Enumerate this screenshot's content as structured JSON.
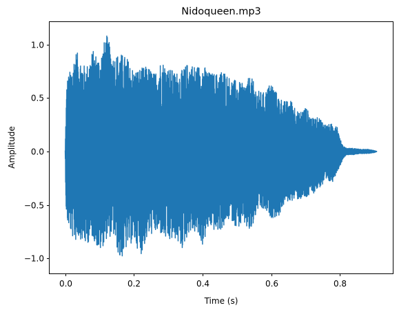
{
  "chart_data": {
    "type": "line",
    "title": "Nidoqueen.mp3",
    "xlabel": "Time (s)",
    "ylabel": "Amplitude",
    "xlim": [
      -0.0454,
      0.954
    ],
    "ylim": [
      -1.14,
      1.21
    ],
    "xticks": [
      0.0,
      0.2,
      0.4,
      0.6,
      0.8
    ],
    "xtick_labels": [
      "0.0",
      "0.2",
      "0.4",
      "0.6",
      "0.8"
    ],
    "yticks": [
      -1.0,
      -0.5,
      0.0,
      0.5,
      1.0
    ],
    "ytick_labels": [
      "−1.0",
      "−0.5",
      "0.0",
      "0.5",
      "1.0"
    ],
    "grid": false,
    "duration_s": 0.908,
    "envelope": {
      "t": [
        0.0,
        0.002,
        0.005,
        0.01,
        0.02,
        0.03,
        0.04,
        0.06,
        0.08,
        0.1,
        0.12,
        0.14,
        0.16,
        0.18,
        0.2,
        0.22,
        0.24,
        0.26,
        0.28,
        0.3,
        0.32,
        0.34,
        0.36,
        0.38,
        0.4,
        0.42,
        0.44,
        0.46,
        0.48,
        0.5,
        0.52,
        0.54,
        0.56,
        0.58,
        0.6,
        0.62,
        0.64,
        0.66,
        0.68,
        0.7,
        0.72,
        0.74,
        0.76,
        0.78,
        0.79,
        0.8,
        0.81,
        0.82,
        0.84,
        0.86,
        0.88,
        0.9,
        0.908
      ],
      "max": [
        0.01,
        0.35,
        0.68,
        0.72,
        0.8,
        0.95,
        0.9,
        0.78,
        0.95,
        0.88,
        1.1,
        0.9,
        0.92,
        0.88,
        0.76,
        0.78,
        0.8,
        0.73,
        0.86,
        0.79,
        0.74,
        0.76,
        0.84,
        0.8,
        0.82,
        0.74,
        0.73,
        0.77,
        0.69,
        0.66,
        0.63,
        0.71,
        0.57,
        0.55,
        0.66,
        0.52,
        0.47,
        0.48,
        0.36,
        0.42,
        0.31,
        0.32,
        0.25,
        0.26,
        0.28,
        0.12,
        0.05,
        0.03,
        0.03,
        0.02,
        0.02,
        0.01,
        0.0
      ],
      "min": [
        -0.01,
        -0.5,
        -0.67,
        -0.7,
        -0.8,
        -0.84,
        -0.8,
        -0.88,
        -0.8,
        -0.95,
        -0.82,
        -0.78,
        -1.03,
        -0.9,
        -0.84,
        -0.97,
        -0.8,
        -0.76,
        -0.78,
        -0.86,
        -0.82,
        -0.92,
        -0.76,
        -0.76,
        -0.88,
        -0.7,
        -0.76,
        -0.72,
        -0.62,
        -0.72,
        -0.68,
        -0.78,
        -0.55,
        -0.56,
        -0.62,
        -0.62,
        -0.48,
        -0.46,
        -0.45,
        -0.45,
        -0.4,
        -0.34,
        -0.3,
        -0.28,
        -0.2,
        -0.14,
        -0.06,
        -0.03,
        -0.03,
        -0.02,
        -0.02,
        -0.01,
        0.0
      ]
    },
    "colors": {
      "series": "#1f77b4",
      "frame": "#000000"
    }
  }
}
